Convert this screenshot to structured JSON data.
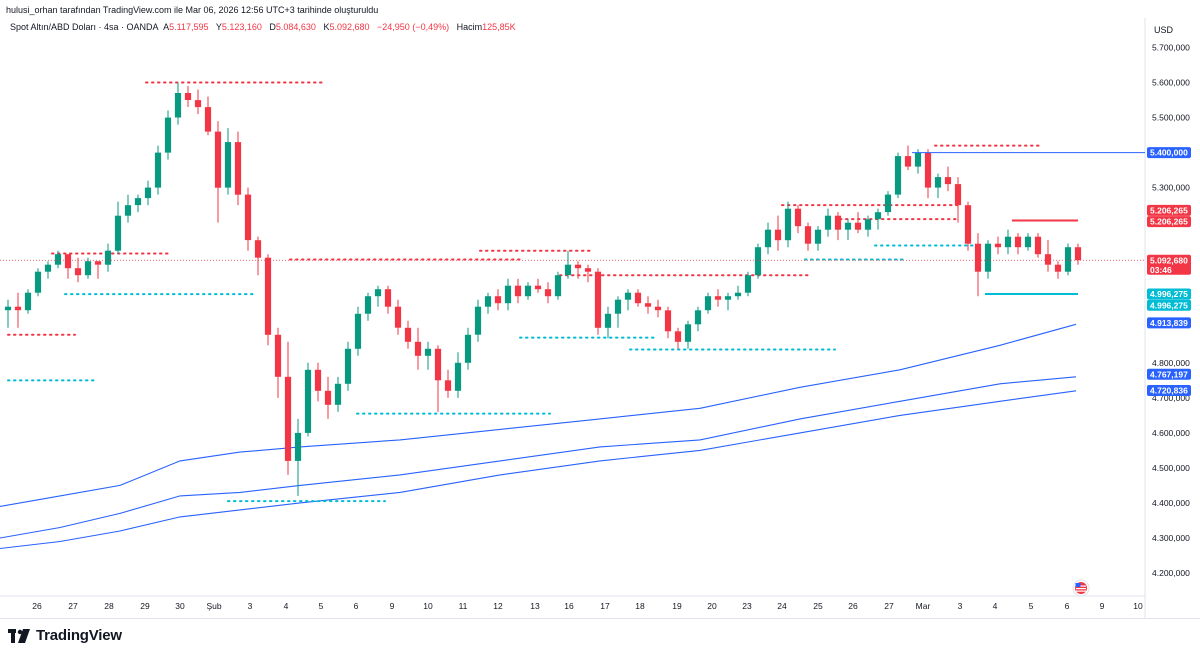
{
  "caption": "hulusi_orhan tarafından TradingView.com ile Mar 06, 2026 12:56 UTC+3 tarihinde oluşturuldu",
  "legend": {
    "symbol": "Spot Altın/ABD Doları · 4sa · OANDA",
    "open_key": "A",
    "open": "5.117,595",
    "high_key": "Y",
    "high": "5.123,160",
    "low_key": "D",
    "low": "5.084,630",
    "close_key": "K",
    "close": "5.092,680",
    "change": "−24,950 (−0,49%)",
    "volume_key": "Hacim",
    "volume": "125,85K"
  },
  "currency": "USD",
  "brand": "TradingView",
  "colors": {
    "up": "#089981",
    "down": "#f23645",
    "ma": "#2962ff",
    "support": "#00bcd4",
    "resistance": "#f23645"
  },
  "chart_data": {
    "type": "candlestick",
    "ylim": [
      4120000,
      5760000
    ],
    "yticks": [
      {
        "v": 4200000,
        "label": "4.200,000"
      },
      {
        "v": 4300000,
        "label": "4.300,000"
      },
      {
        "v": 4400000,
        "label": "4.400,000"
      },
      {
        "v": 4500000,
        "label": "4.500,000"
      },
      {
        "v": 4600000,
        "label": "4.600,000"
      },
      {
        "v": 4700000,
        "label": "4.700,000"
      },
      {
        "v": 4800000,
        "label": "4.800,000"
      },
      {
        "v": 5300000,
        "label": "5.300,000"
      },
      {
        "v": 5500000,
        "label": "5.500,000"
      },
      {
        "v": 5600000,
        "label": "5.600,000"
      },
      {
        "v": 5700000,
        "label": "5.700,000"
      }
    ],
    "x_labels": [
      "26",
      "27",
      "28",
      "29",
      "30",
      "Şub",
      "3",
      "4",
      "5",
      "6",
      "9",
      "10",
      "11",
      "12",
      "13",
      "16",
      "17",
      "18",
      "19",
      "20",
      "23",
      "24",
      "25",
      "26",
      "27",
      "Mar",
      "3",
      "4",
      "5",
      "6",
      "9",
      "10"
    ],
    "candles": [
      [
        4950,
        4980,
        4900,
        4960
      ],
      [
        4960,
        5000,
        4900,
        4950
      ],
      [
        4950,
        5010,
        4940,
        5000
      ],
      [
        5000,
        5070,
        4990,
        5060
      ],
      [
        5060,
        5090,
        5040,
        5080
      ],
      [
        5080,
        5120,
        5070,
        5110
      ],
      [
        5110,
        5110,
        5040,
        5070
      ],
      [
        5070,
        5100,
        5030,
        5050
      ],
      [
        5050,
        5100,
        5040,
        5090
      ],
      [
        5090,
        5080,
        5040,
        5080
      ],
      [
        5080,
        5140,
        5060,
        5120
      ],
      [
        5120,
        5260,
        5110,
        5220
      ],
      [
        5220,
        5280,
        5200,
        5250
      ],
      [
        5250,
        5280,
        5230,
        5270
      ],
      [
        5270,
        5320,
        5250,
        5300
      ],
      [
        5300,
        5420,
        5280,
        5400
      ],
      [
        5400,
        5520,
        5380,
        5500
      ],
      [
        5500,
        5600,
        5480,
        5570
      ],
      [
        5570,
        5590,
        5530,
        5550
      ],
      [
        5550,
        5580,
        5510,
        5530
      ],
      [
        5530,
        5560,
        5450,
        5460
      ],
      [
        5460,
        5490,
        5200,
        5300
      ],
      [
        5300,
        5470,
        5280,
        5430
      ],
      [
        5430,
        5460,
        5250,
        5280
      ],
      [
        5280,
        5300,
        5120,
        5150
      ],
      [
        5150,
        5160,
        5050,
        5100
      ],
      [
        5100,
        5110,
        4850,
        4880
      ],
      [
        4880,
        4900,
        4700,
        4760
      ],
      [
        4760,
        4860,
        4480,
        4520
      ],
      [
        4520,
        4640,
        4420,
        4600
      ],
      [
        4600,
        4800,
        4590,
        4780
      ],
      [
        4780,
        4800,
        4690,
        4720
      ],
      [
        4720,
        4760,
        4640,
        4680
      ],
      [
        4680,
        4760,
        4660,
        4740
      ],
      [
        4740,
        4860,
        4720,
        4840
      ],
      [
        4840,
        4960,
        4820,
        4940
      ],
      [
        4940,
        5000,
        4920,
        4990
      ],
      [
        4990,
        5020,
        4960,
        5010
      ],
      [
        5010,
        5020,
        4940,
        4960
      ],
      [
        4960,
        4980,
        4880,
        4900
      ],
      [
        4900,
        4920,
        4840,
        4860
      ],
      [
        4860,
        4900,
        4780,
        4820
      ],
      [
        4820,
        4860,
        4780,
        4840
      ],
      [
        4840,
        4850,
        4660,
        4750
      ],
      [
        4750,
        4780,
        4700,
        4720
      ],
      [
        4720,
        4830,
        4700,
        4800
      ],
      [
        4800,
        4900,
        4780,
        4880
      ],
      [
        4880,
        4980,
        4860,
        4960
      ],
      [
        4960,
        5000,
        4940,
        4990
      ],
      [
        4990,
        5010,
        4950,
        4970
      ],
      [
        4970,
        5040,
        4950,
        5020
      ],
      [
        5020,
        5040,
        4970,
        4990
      ],
      [
        4990,
        5030,
        4980,
        5020
      ],
      [
        5020,
        5040,
        5000,
        5010
      ],
      [
        5010,
        5030,
        4970,
        4990
      ],
      [
        4990,
        5060,
        4980,
        5050
      ],
      [
        5050,
        5120,
        5040,
        5080
      ],
      [
        5080,
        5090,
        5040,
        5070
      ],
      [
        5070,
        5080,
        5030,
        5060
      ],
      [
        5060,
        5070,
        4880,
        4900
      ],
      [
        4900,
        4960,
        4870,
        4940
      ],
      [
        4940,
        4990,
        4900,
        4980
      ],
      [
        4980,
        5010,
        4950,
        5000
      ],
      [
        5000,
        5010,
        4960,
        4970
      ],
      [
        4970,
        4990,
        4940,
        4960
      ],
      [
        4960,
        4980,
        4930,
        4950
      ],
      [
        4950,
        4960,
        4870,
        4890
      ],
      [
        4890,
        4900,
        4840,
        4860
      ],
      [
        4860,
        4920,
        4840,
        4910
      ],
      [
        4910,
        4960,
        4890,
        4950
      ],
      [
        4950,
        5000,
        4940,
        4990
      ],
      [
        4990,
        5010,
        4960,
        4980
      ],
      [
        4980,
        5000,
        4950,
        4990
      ],
      [
        4990,
        5020,
        4980,
        5000
      ],
      [
        5000,
        5060,
        4990,
        5050
      ],
      [
        5050,
        5140,
        5040,
        5130
      ],
      [
        5130,
        5200,
        5110,
        5180
      ],
      [
        5180,
        5220,
        5120,
        5150
      ],
      [
        5150,
        5260,
        5130,
        5240
      ],
      [
        5240,
        5250,
        5170,
        5190
      ],
      [
        5190,
        5200,
        5120,
        5140
      ],
      [
        5140,
        5190,
        5120,
        5180
      ],
      [
        5180,
        5240,
        5160,
        5220
      ],
      [
        5220,
        5230,
        5150,
        5180
      ],
      [
        5180,
        5210,
        5150,
        5200
      ],
      [
        5200,
        5230,
        5170,
        5180
      ],
      [
        5180,
        5220,
        5160,
        5210
      ],
      [
        5210,
        5240,
        5180,
        5230
      ],
      [
        5230,
        5290,
        5220,
        5280
      ],
      [
        5280,
        5400,
        5270,
        5390
      ],
      [
        5390,
        5420,
        5350,
        5360
      ],
      [
        5360,
        5410,
        5340,
        5400
      ],
      [
        5400,
        5410,
        5270,
        5300
      ],
      [
        5300,
        5340,
        5270,
        5330
      ],
      [
        5330,
        5360,
        5290,
        5310
      ],
      [
        5310,
        5330,
        5200,
        5250
      ],
      [
        5250,
        5260,
        5120,
        5140
      ],
      [
        5140,
        5170,
        4990,
        5060
      ],
      [
        5060,
        5150,
        5040,
        5140
      ],
      [
        5140,
        5160,
        5110,
        5130
      ],
      [
        5130,
        5180,
        5110,
        5160
      ],
      [
        5160,
        5170,
        5110,
        5130
      ],
      [
        5130,
        5170,
        5120,
        5160
      ],
      [
        5160,
        5170,
        5100,
        5110
      ],
      [
        5110,
        5150,
        5060,
        5080
      ],
      [
        5080,
        5090,
        5040,
        5060
      ],
      [
        5060,
        5140,
        5050,
        5130
      ],
      [
        5130,
        5140,
        5080,
        5093
      ]
    ],
    "moving_averages": [
      {
        "points": [
          [
            0,
            4390
          ],
          [
            60,
            4420
          ],
          [
            120,
            4450
          ],
          [
            180,
            4520
          ],
          [
            240,
            4545
          ],
          [
            300,
            4560
          ],
          [
            400,
            4580
          ],
          [
            500,
            4610
          ],
          [
            600,
            4640
          ],
          [
            700,
            4670
          ],
          [
            800,
            4730
          ],
          [
            900,
            4780
          ],
          [
            1000,
            4850
          ],
          [
            1076,
            4910
          ]
        ]
      },
      {
        "points": [
          [
            0,
            4300
          ],
          [
            60,
            4330
          ],
          [
            120,
            4370
          ],
          [
            180,
            4420
          ],
          [
            240,
            4430
          ],
          [
            300,
            4450
          ],
          [
            400,
            4480
          ],
          [
            500,
            4520
          ],
          [
            600,
            4560
          ],
          [
            700,
            4580
          ],
          [
            800,
            4640
          ],
          [
            900,
            4690
          ],
          [
            1000,
            4740
          ],
          [
            1076,
            4760
          ]
        ]
      },
      {
        "points": [
          [
            0,
            4270
          ],
          [
            60,
            4290
          ],
          [
            120,
            4320
          ],
          [
            180,
            4360
          ],
          [
            240,
            4380
          ],
          [
            300,
            4400
          ],
          [
            400,
            4430
          ],
          [
            500,
            4480
          ],
          [
            600,
            4520
          ],
          [
            700,
            4550
          ],
          [
            800,
            4600
          ],
          [
            900,
            4650
          ],
          [
            1000,
            4690
          ],
          [
            1076,
            4720
          ]
        ]
      }
    ],
    "h_lines": [
      {
        "y": 5400000,
        "x0": 912,
        "x1": 1145,
        "kind": "solid-blue"
      },
      {
        "y": 5206265,
        "x0": 1012,
        "x1": 1078,
        "kind": "solid-red"
      },
      {
        "y": 4996275,
        "x0": 985,
        "x1": 1078,
        "kind": "solid-cyan"
      }
    ],
    "dotted_levels": [
      {
        "y": 5600000,
        "x0": 146,
        "x1": 325,
        "kind": "res"
      },
      {
        "y": 5420000,
        "x0": 935,
        "x1": 1040,
        "kind": "res"
      },
      {
        "y": 5250000,
        "x0": 782,
        "x1": 960,
        "kind": "res"
      },
      {
        "y": 5210000,
        "x0": 840,
        "x1": 960,
        "kind": "res"
      },
      {
        "y": 5120000,
        "x0": 480,
        "x1": 590,
        "kind": "res"
      },
      {
        "y": 5112000,
        "x0": 52,
        "x1": 170,
        "kind": "res"
      },
      {
        "y": 5095000,
        "x0": 290,
        "x1": 520,
        "kind": "res"
      },
      {
        "y": 5050000,
        "x0": 560,
        "x1": 810,
        "kind": "res"
      },
      {
        "y": 4880000,
        "x0": 8,
        "x1": 75,
        "kind": "res"
      },
      {
        "y": 5135000,
        "x0": 875,
        "x1": 980,
        "kind": "sup"
      },
      {
        "y": 5095000,
        "x0": 805,
        "x1": 905,
        "kind": "sup"
      },
      {
        "y": 4996000,
        "x0": 65,
        "x1": 255,
        "kind": "sup"
      },
      {
        "y": 4872000,
        "x0": 520,
        "x1": 655,
        "kind": "sup"
      },
      {
        "y": 4838000,
        "x0": 630,
        "x1": 835,
        "kind": "sup"
      },
      {
        "y": 4750000,
        "x0": 8,
        "x1": 95,
        "kind": "sup"
      },
      {
        "y": 4655000,
        "x0": 357,
        "x1": 550,
        "kind": "sup"
      },
      {
        "y": 4405000,
        "x0": 228,
        "x1": 385,
        "kind": "sup"
      }
    ],
    "price_tags": [
      {
        "y": 5400000,
        "label": "5.400,000",
        "color": "#2962ff"
      },
      {
        "y": 5235000,
        "label": "5.206,265",
        "color": "#f23645"
      },
      {
        "y": 5203000,
        "label": "5.206,265",
        "color": "#f23645"
      },
      {
        "y": 5092680,
        "label": "5.092,680",
        "color": "#f23645",
        "sub": "03:46"
      },
      {
        "y": 4996275,
        "label": "4.996,275",
        "color": "#00bcd4"
      },
      {
        "y": 4964000,
        "label": "4.996,275",
        "color": "#00bcd4"
      },
      {
        "y": 4913839,
        "label": "4.913,839",
        "color": "#2962ff"
      },
      {
        "y": 4767197,
        "label": "4.767,197",
        "color": "#2962ff"
      },
      {
        "y": 4720836,
        "label": "4.720,836",
        "color": "#2962ff"
      }
    ]
  }
}
